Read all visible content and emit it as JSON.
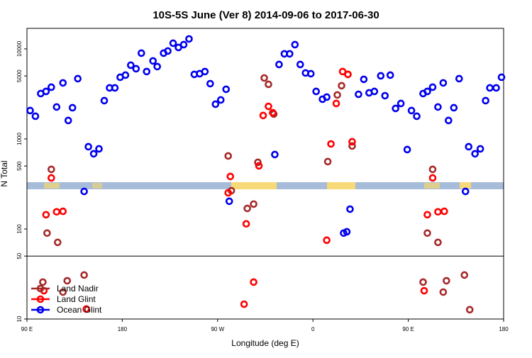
{
  "chart_data": {
    "type": "scatter",
    "title": "10S-5S June (Ver 8)   2014-09-06 to 2017-06-30",
    "x_label": "Longitude (deg E)",
    "y_label": "N Total",
    "xlim": [
      90,
      540
    ],
    "xticks": [
      {
        "value": 90,
        "label": "90 E"
      },
      {
        "value": 180,
        "label": "180"
      },
      {
        "value": 270,
        "label": "90 W"
      },
      {
        "value": 360,
        "label": "0"
      },
      {
        "value": 450,
        "label": "90 E"
      },
      {
        "value": 540,
        "label": "180"
      }
    ],
    "ylim": [
      10,
      16900
    ],
    "log_y": true,
    "yticks": [
      10,
      50,
      100,
      500,
      1000,
      5000,
      10000
    ],
    "legend": "bottom-left",
    "series": [
      {
        "name": "Land Nadir",
        "color": "#a52a2a",
        "x": [
          113,
          109,
          119,
          144,
          128,
          124,
          105,
          280,
          283,
          298,
          304,
          308,
          314,
          318,
          323,
          374,
          383,
          387,
          393,
          397,
          473,
          468,
          478,
          503,
          486,
          483,
          464,
          508
        ],
        "values": [
          459,
          90,
          71,
          30.8,
          26.6,
          19.9,
          25.7,
          647,
          266,
          169,
          189,
          550,
          4750,
          4040,
          1890,
          560,
          3080,
          3900,
          5210,
          834,
          459,
          90,
          71,
          30.8,
          26.6,
          19.9,
          25.7,
          12.7
        ]
      },
      {
        "name": "Land Glint",
        "color": "#ff0000",
        "x": [
          113,
          108,
          118,
          124,
          146,
          280,
          282,
          297,
          309,
          313,
          322,
          318,
          373,
          377,
          382,
          388,
          393,
          397,
          468,
          473,
          478,
          484,
          465,
          106,
          295,
          304
        ],
        "values": [
          369,
          144,
          155,
          157,
          12.9,
          252,
          383,
          114,
          502,
          1820,
          1955,
          2300,
          75,
          880,
          2475,
          5600,
          5210,
          930,
          144,
          369,
          155,
          157,
          20.6,
          20.6,
          14.6,
          25.7
        ]
      },
      {
        "name": "Ocean Glint",
        "color": "#0000ee",
        "x": [
          93,
          98,
          103,
          108,
          113,
          118,
          124,
          129,
          133,
          138,
          144,
          148,
          153,
          158,
          163,
          168,
          173,
          178,
          183,
          188,
          193,
          198,
          203,
          209,
          213,
          219,
          223,
          228,
          233,
          238,
          243,
          248,
          253,
          258,
          263,
          268,
          273,
          278,
          281,
          324,
          328,
          333,
          338,
          343,
          348,
          353,
          358,
          363,
          369,
          373,
          389,
          392,
          395,
          403,
          408,
          413,
          418,
          424,
          428,
          433,
          438,
          443,
          449,
          453,
          458,
          464,
          468,
          473,
          478,
          483,
          488,
          493,
          498,
          504,
          507,
          513,
          518,
          523,
          527,
          533,
          538
        ],
        "values": [
          2065,
          1786,
          3190,
          3370,
          3756,
          2262,
          4190,
          1602,
          2220,
          4670,
          261,
          819,
          684,
          776,
          2662,
          3690,
          3690,
          4840,
          5110,
          6590,
          6020,
          8970,
          5600,
          7350,
          6360,
          8970,
          9470,
          11560,
          10370,
          11150,
          12900,
          5210,
          5300,
          5600,
          4110,
          2430,
          2710,
          3560,
          203,
          671,
          6710,
          8810,
          8810,
          11150,
          6710,
          5400,
          5300,
          3370,
          2760,
          2915,
          90,
          93,
          166,
          3130,
          4590,
          3250,
          3370,
          5020,
          3020,
          5110,
          2180,
          2475,
          762,
          2065,
          1786,
          3190,
          3370,
          3756,
          2262,
          4190,
          1602,
          2220,
          4670,
          261,
          819,
          684,
          776,
          2662,
          3690,
          3690,
          4840
        ]
      }
    ]
  }
}
